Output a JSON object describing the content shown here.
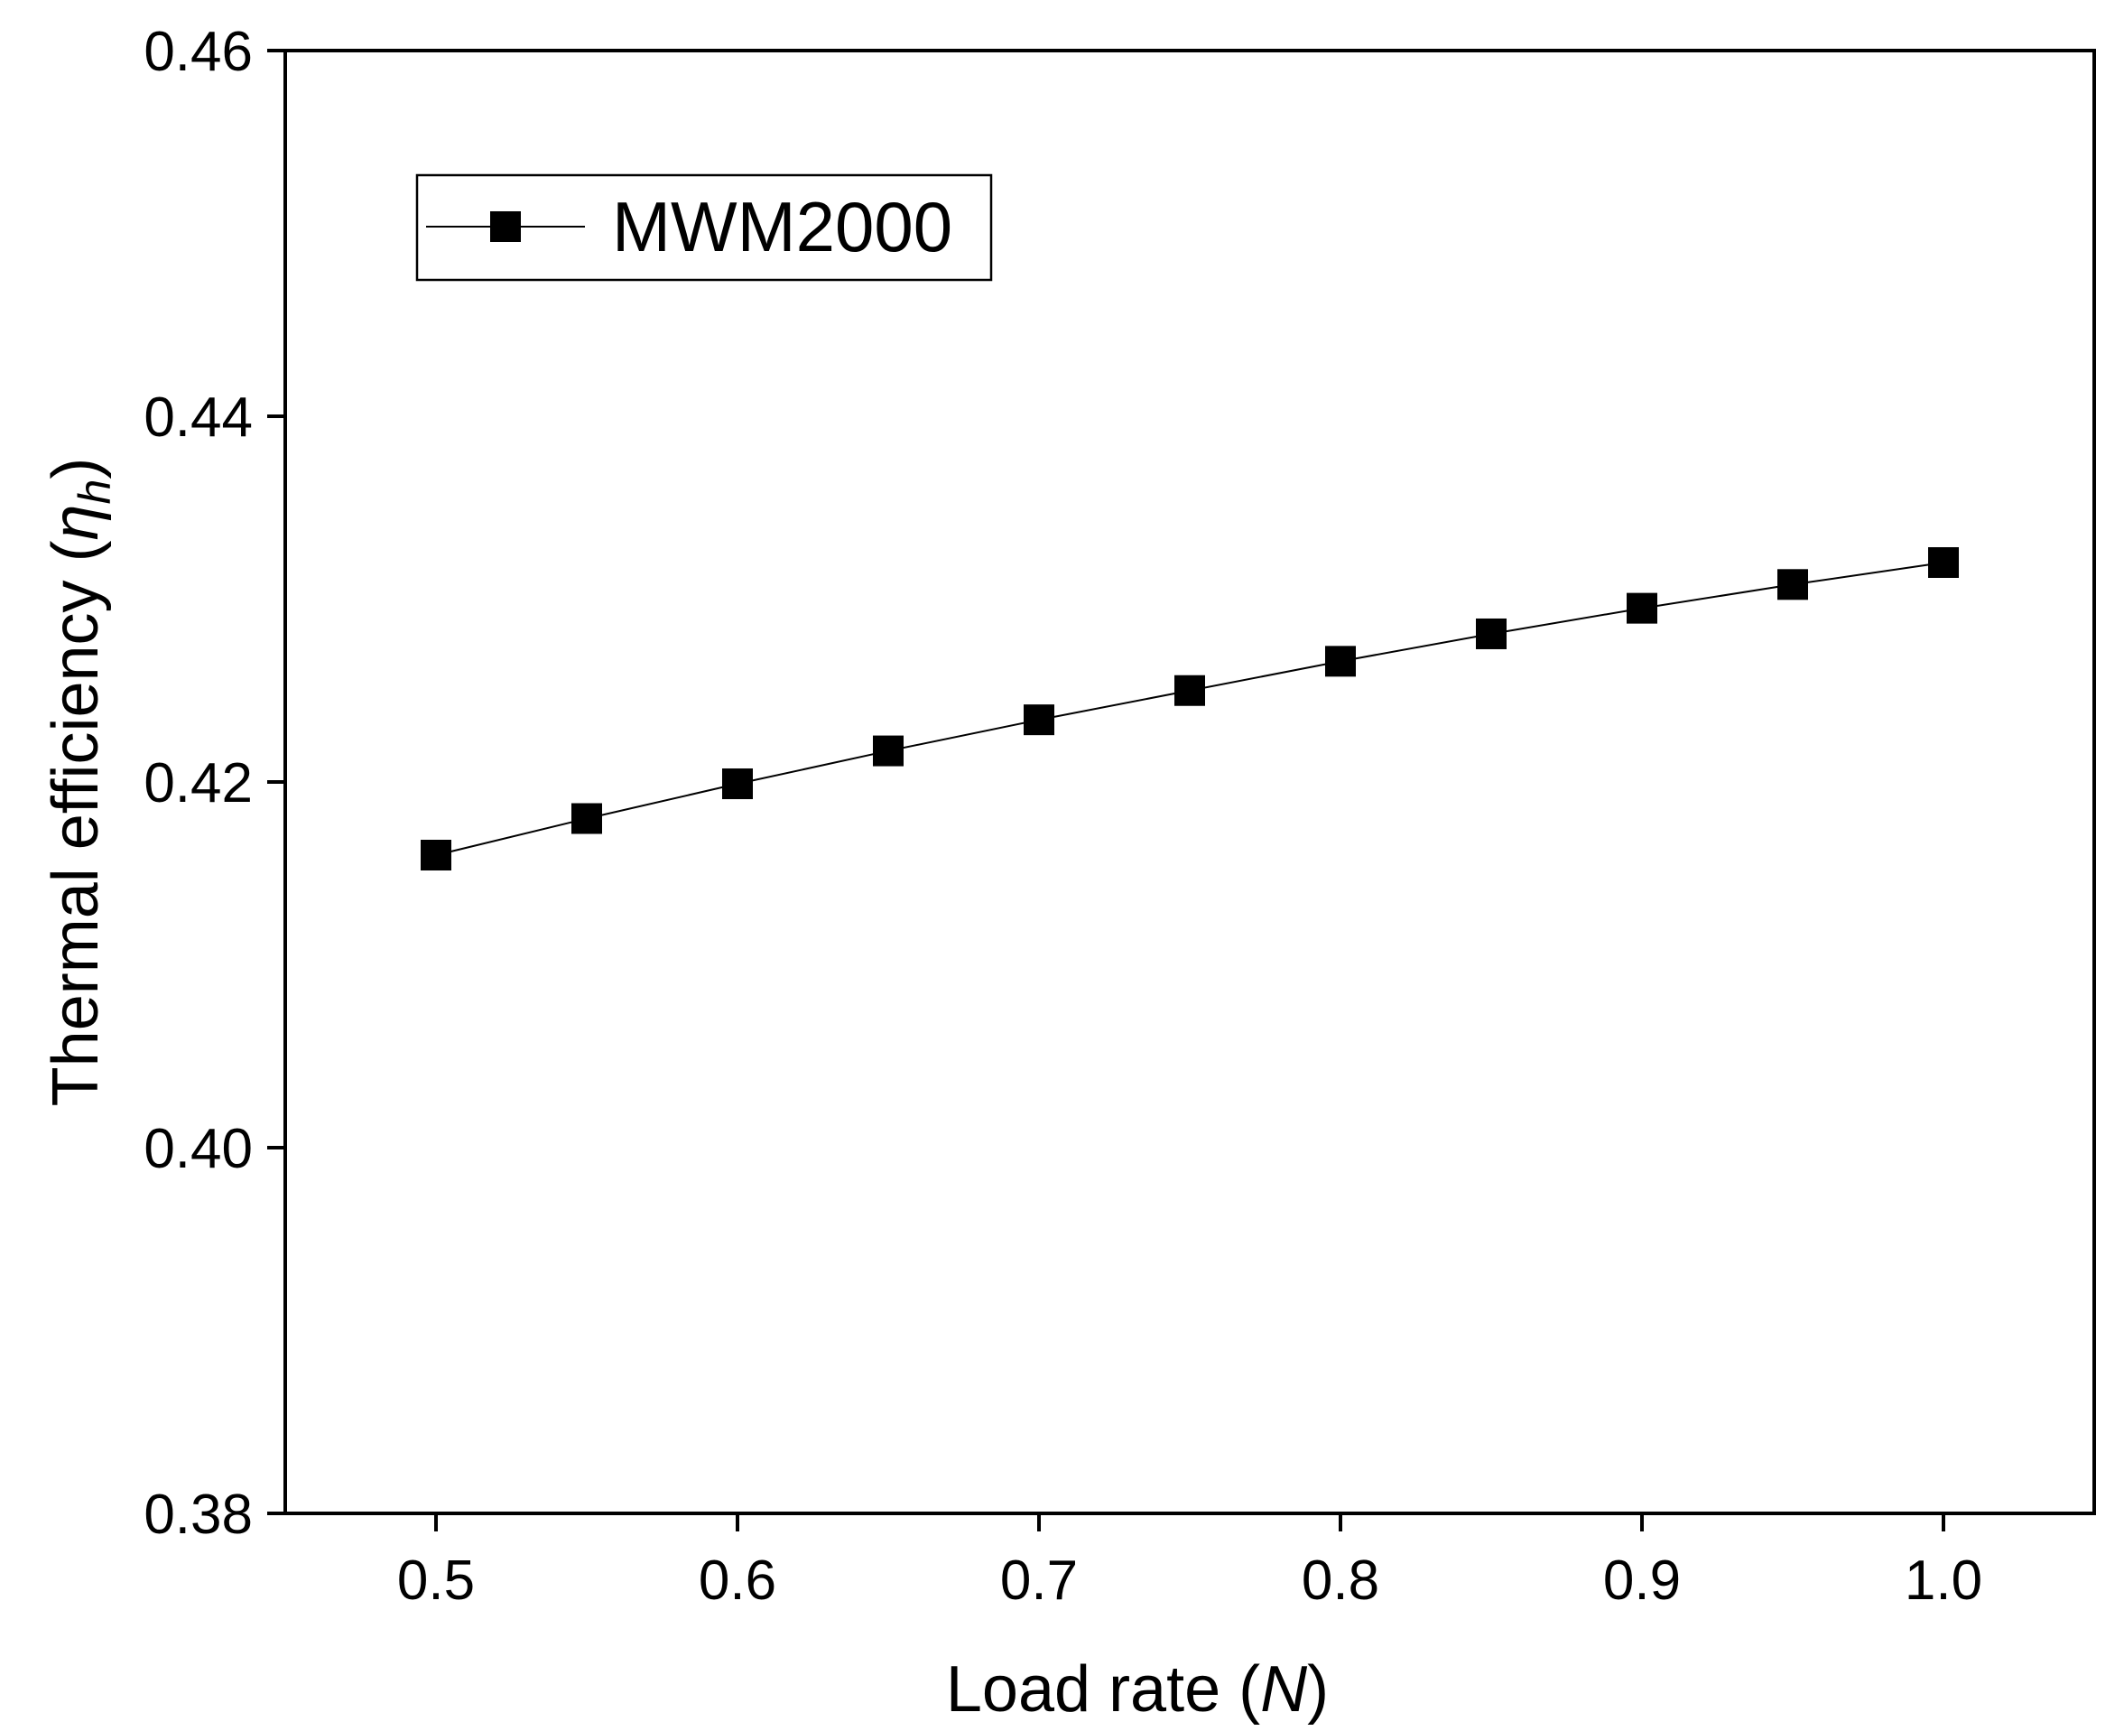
{
  "chart_data": {
    "type": "line",
    "title": "",
    "xlabel": {
      "prefix": "Load rate (",
      "symbol": "N",
      "suffix": ")"
    },
    "ylabel": {
      "prefix": "Thermal efficiency (",
      "symbol": "η",
      "subscript": "h",
      "suffix": ")"
    },
    "xlim": [
      0.45,
      1.05
    ],
    "ylim": [
      0.38,
      0.46
    ],
    "x_ticks": [
      0.5,
      0.6,
      0.7,
      0.8,
      0.9,
      1.0
    ],
    "x_tick_labels": [
      "0.5",
      "0.6",
      "0.7",
      "0.8",
      "0.9",
      "1.0"
    ],
    "y_ticks": [
      0.38,
      0.4,
      0.42,
      0.44,
      0.46
    ],
    "y_tick_labels": [
      "0.38",
      "0.40",
      "0.42",
      "0.44",
      "0.46"
    ],
    "grid": false,
    "legend_position": "top-left",
    "series": [
      {
        "name": "MWM2000",
        "color": "#000000",
        "marker": "square",
        "x": [
          0.5,
          0.55,
          0.6,
          0.65,
          0.7,
          0.75,
          0.8,
          0.85,
          0.9,
          0.95,
          1.0
        ],
        "y": [
          0.416,
          0.418,
          0.4199,
          0.4217,
          0.4234,
          0.425,
          0.4266,
          0.4281,
          0.4295,
          0.4308,
          0.432
        ]
      }
    ]
  }
}
